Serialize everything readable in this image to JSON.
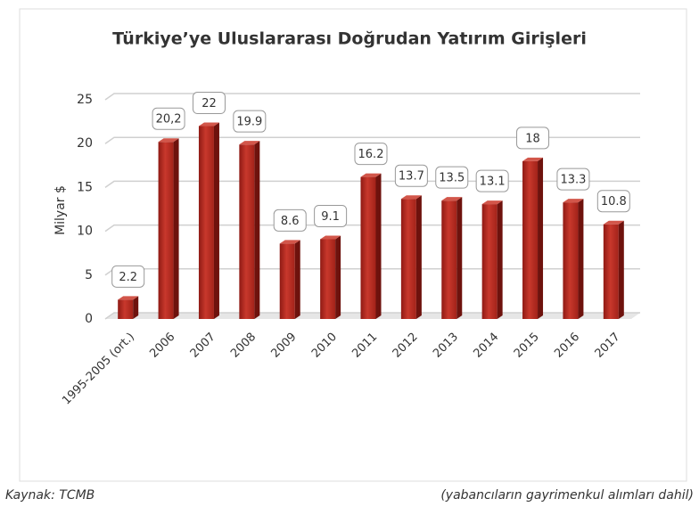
{
  "chart_data": {
    "type": "bar3d",
    "title": "Türkiye’ye Uluslararası Doğrudan Yatırım Girişleri",
    "y_label": "Milyar $",
    "categories": [
      "1995-2005 (ort.)",
      "2006",
      "2007",
      "2008",
      "2009",
      "2010",
      "2011",
      "2012",
      "2013",
      "2014",
      "2015",
      "2016",
      "2017"
    ],
    "values": [
      2.2,
      20.2,
      22,
      19.9,
      8.6,
      9.1,
      16.2,
      13.7,
      13.5,
      13.1,
      18,
      13.3,
      10.8
    ],
    "value_labels": [
      "2.2",
      "20,2",
      "22",
      "19.9",
      "8.6",
      "9.1",
      "16.2",
      "13.7",
      "13.5",
      "13.1",
      "18",
      "13.3",
      "10.8"
    ],
    "color": "#b1271d",
    "ylim": [
      0,
      25
    ],
    "yticks": [
      0,
      5,
      10,
      15,
      20,
      25
    ],
    "grid": true,
    "source": "Kaynak: TCMB",
    "note": "(yabancıların gayrimenkul alımları dahil)"
  }
}
